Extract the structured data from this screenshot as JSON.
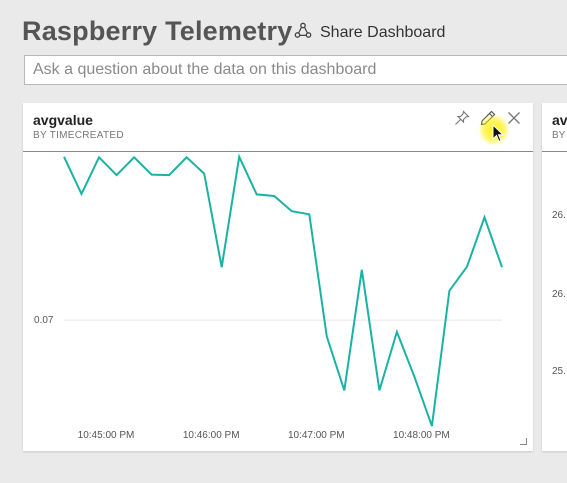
{
  "header": {
    "title": "Raspberry Telemetry",
    "share_label": "Share Dashboard",
    "share_icon": "share-icon",
    "question_placeholder": "Ask a question about the data on this dashboard"
  },
  "tile": {
    "title": "avgvalue",
    "subtitle": "BY TIMECREATED",
    "actions": [
      "pin-icon",
      "edit-icon",
      "close-icon"
    ]
  },
  "tile2": {
    "title": "av",
    "subtitle": "BY",
    "tick_labels": [
      "26.",
      "26.",
      "25."
    ]
  },
  "colors": {
    "line": "#1ab2a4",
    "grid": "#e6e6e6"
  },
  "chart_data": {
    "type": "line",
    "title": "avgvalue",
    "subtitle": "BY TIMECREATED",
    "xlabel": "",
    "ylabel": "",
    "x": [
      "10:44:36 PM",
      "10:44:46 PM",
      "10:44:56 PM",
      "10:45:06 PM",
      "10:45:16 PM",
      "10:45:26 PM",
      "10:45:36 PM",
      "10:45:46 PM",
      "10:45:56 PM",
      "10:46:06 PM",
      "10:46:16 PM",
      "10:46:26 PM",
      "10:46:36 PM",
      "10:46:46 PM",
      "10:46:56 PM",
      "10:47:06 PM",
      "10:47:16 PM",
      "10:47:26 PM",
      "10:47:36 PM",
      "10:47:46 PM",
      "10:47:56 PM",
      "10:48:06 PM",
      "10:48:16 PM",
      "10:48:26 PM",
      "10:48:36 PM",
      "10:48:46 PM"
    ],
    "values": [
      0.1021,
      0.0948,
      0.102,
      0.0985,
      0.102,
      0.0986,
      0.0985,
      0.102,
      0.0988,
      0.0804,
      0.1021,
      0.0947,
      0.0944,
      0.0914,
      0.0908,
      0.0668,
      0.0562,
      0.0799,
      0.0562,
      0.0677,
      0.0589,
      0.0492,
      0.0758,
      0.0805,
      0.0902,
      0.0804
    ],
    "x_ticks": [
      "10:45:00 PM",
      "10:46:00 PM",
      "10:47:00 PM",
      "10:48:00 PM"
    ],
    "y_ticks": [
      0.07
    ],
    "ylim": [
      0.05,
      0.105
    ],
    "grid": false,
    "legend": "none"
  }
}
